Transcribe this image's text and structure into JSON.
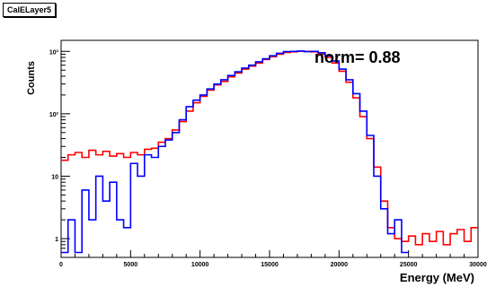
{
  "title": "CalELayer5",
  "annotation": "norm= 0.88",
  "chart_data": {
    "type": "line",
    "xlabel": "Energy (MeV)",
    "ylabel": "Counts",
    "xlim": [
      0,
      30000
    ],
    "ylim": [
      0.5,
      1500
    ],
    "y_scale": "log",
    "x_ticks": [
      0,
      5000,
      10000,
      15000,
      20000,
      25000,
      30000
    ],
    "x_tick_labels": [
      "0",
      "5000",
      "10000",
      "15000",
      "20000",
      "25000",
      "30000"
    ],
    "y_ticks": [
      1,
      10,
      100,
      1000
    ],
    "y_tick_labels": [
      "1",
      "10",
      "10²",
      "10³"
    ],
    "grid": false,
    "series": [
      {
        "color": "#ff0000",
        "x": [
          0,
          500,
          1000,
          1500,
          2000,
          2500,
          3000,
          3500,
          4000,
          4500,
          5000,
          5500,
          6000,
          6500,
          7000,
          7500,
          8000,
          8500,
          9000,
          9500,
          10000,
          10500,
          11000,
          11500,
          12000,
          12500,
          13000,
          13500,
          14000,
          14500,
          15000,
          15500,
          16000,
          16500,
          17000,
          17500,
          18000,
          18500,
          19000,
          19500,
          20000,
          20500,
          21000,
          21500,
          22000,
          22500,
          23000,
          23500,
          24000,
          24500,
          25000,
          25500,
          26000,
          26500,
          27000,
          27500,
          28000,
          28500,
          29000,
          29500
        ],
        "y": [
          18,
          22,
          24,
          20,
          26,
          22,
          25,
          21,
          23,
          20,
          24,
          22,
          27,
          28,
          35,
          40,
          55,
          75,
          110,
          150,
          190,
          240,
          290,
          330,
          390,
          450,
          520,
          580,
          650,
          740,
          820,
          900,
          960,
          980,
          1000,
          1000,
          980,
          900,
          800,
          650,
          480,
          320,
          180,
          90,
          40,
          14,
          4,
          1.5,
          1,
          0.9,
          1.1,
          0.8,
          1.2,
          0.9,
          1.3,
          0.8,
          1.2,
          1.4,
          0.9,
          1.5
        ]
      },
      {
        "color": "#0000ff",
        "x": [
          0,
          500,
          1000,
          1500,
          2000,
          2500,
          3000,
          3500,
          4000,
          4500,
          5000,
          5500,
          6000,
          6500,
          7000,
          7500,
          8000,
          8500,
          9000,
          9500,
          10000,
          10500,
          11000,
          11500,
          12000,
          12500,
          13000,
          13500,
          14000,
          14500,
          15000,
          15500,
          16000,
          16500,
          17000,
          17500,
          18000,
          18500,
          19000,
          19500,
          20000,
          20500,
          21000,
          21500,
          22000,
          22500,
          23000,
          23500,
          24000,
          24500
        ],
        "y": [
          0.6,
          2,
          0.6,
          6,
          2,
          10,
          4,
          8,
          2,
          1.5,
          16,
          10,
          22,
          20,
          30,
          38,
          50,
          80,
          130,
          165,
          200,
          250,
          300,
          350,
          410,
          470,
          540,
          600,
          680,
          760,
          850,
          930,
          990,
          1000,
          1010,
          990,
          1000,
          950,
          850,
          700,
          520,
          350,
          210,
          110,
          45,
          10,
          3,
          1.2,
          2,
          0.6
        ]
      }
    ]
  }
}
